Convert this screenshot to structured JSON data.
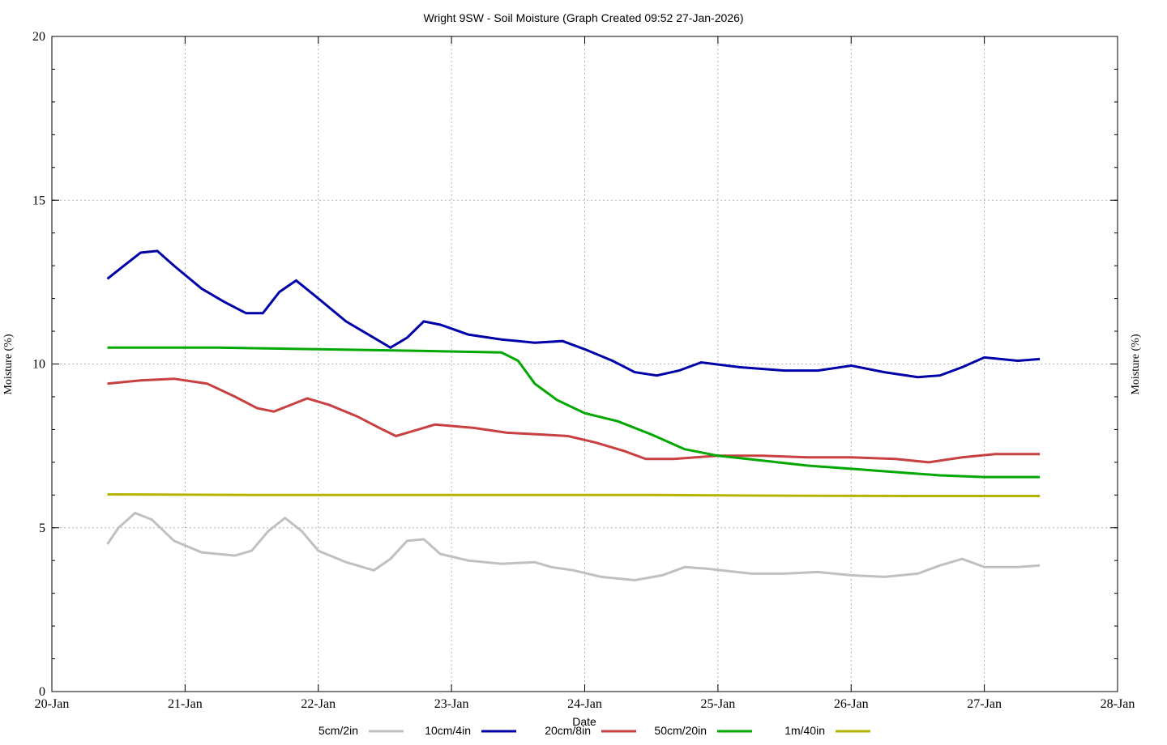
{
  "chart_data": {
    "type": "line",
    "title": "Wright 9SW - Soil Moisture (Graph Created 09:52 27-Jan-2026)",
    "xlabel": "Date",
    "ylabel": "Moisture (%)",
    "ylabel_right": "Moisture (%)",
    "x_ticks": [
      "20-Jan",
      "21-Jan",
      "22-Jan",
      "23-Jan",
      "24-Jan",
      "25-Jan",
      "26-Jan",
      "27-Jan",
      "28-Jan"
    ],
    "y_ticks": [
      "0",
      "5",
      "10",
      "15",
      "20"
    ],
    "xlim": [
      "20-Jan",
      "28-Jan"
    ],
    "ylim": [
      0,
      20
    ],
    "grid": true,
    "legend_position": "bottom",
    "series": [
      {
        "name": "5cm/2in",
        "color": "#c0c0c0",
        "x": [
          "20-Jan 10:00",
          "20-Jan 12:00",
          "20-Jan 15:00",
          "20-Jan 18:00",
          "20-Jan 22:00",
          "21-Jan 03:00",
          "21-Jan 09:00",
          "21-Jan 12:00",
          "21-Jan 15:00",
          "21-Jan 18:00",
          "21-Jan 21:00",
          "22-Jan 00:00",
          "22-Jan 05:00",
          "22-Jan 10:00",
          "22-Jan 13:00",
          "22-Jan 16:00",
          "22-Jan 19:00",
          "22-Jan 22:00",
          "23-Jan 03:00",
          "23-Jan 09:00",
          "23-Jan 15:00",
          "23-Jan 18:00",
          "23-Jan 22:00",
          "24-Jan 03:00",
          "24-Jan 09:00",
          "24-Jan 14:00",
          "24-Jan 18:00",
          "24-Jan 22:00",
          "25-Jan 06:00",
          "25-Jan 12:00",
          "25-Jan 18:00",
          "26-Jan 00:00",
          "26-Jan 06:00",
          "26-Jan 12:00",
          "26-Jan 16:00",
          "26-Jan 20:00",
          "27-Jan 00:00",
          "27-Jan 06:00",
          "27-Jan 10:00"
        ],
        "values": [
          4.5,
          5.0,
          5.45,
          5.25,
          4.6,
          4.25,
          4.15,
          4.3,
          4.9,
          5.3,
          4.9,
          4.3,
          3.95,
          3.7,
          4.05,
          4.6,
          4.65,
          4.2,
          4.0,
          3.9,
          3.95,
          3.8,
          3.7,
          3.5,
          3.4,
          3.55,
          3.8,
          3.75,
          3.6,
          3.6,
          3.65,
          3.55,
          3.5,
          3.6,
          3.85,
          4.05,
          3.8,
          3.8,
          3.85
        ]
      },
      {
        "name": "10cm/4in",
        "color": "#0000a8",
        "x": [
          "20-Jan 10:00",
          "20-Jan 13:00",
          "20-Jan 16:00",
          "20-Jan 19:00",
          "20-Jan 22:00",
          "21-Jan 03:00",
          "21-Jan 07:00",
          "21-Jan 11:00",
          "21-Jan 14:00",
          "21-Jan 17:00",
          "21-Jan 20:00",
          "22-Jan 00:00",
          "22-Jan 05:00",
          "22-Jan 10:00",
          "22-Jan 13:00",
          "22-Jan 16:00",
          "22-Jan 19:00",
          "22-Jan 22:00",
          "23-Jan 03:00",
          "23-Jan 09:00",
          "23-Jan 15:00",
          "23-Jan 20:00",
          "24-Jan 00:00",
          "24-Jan 05:00",
          "24-Jan 09:00",
          "24-Jan 13:00",
          "24-Jan 17:00",
          "24-Jan 21:00",
          "25-Jan 04:00",
          "25-Jan 12:00",
          "25-Jan 18:00",
          "26-Jan 00:00",
          "26-Jan 06:00",
          "26-Jan 12:00",
          "26-Jan 16:00",
          "26-Jan 20:00",
          "27-Jan 00:00",
          "27-Jan 06:00",
          "27-Jan 10:00"
        ],
        "values": [
          12.6,
          13.0,
          13.4,
          13.45,
          13.0,
          12.3,
          11.9,
          11.55,
          11.55,
          12.2,
          12.55,
          12.0,
          11.3,
          10.8,
          10.5,
          10.8,
          11.3,
          11.2,
          10.9,
          10.75,
          10.65,
          10.7,
          10.45,
          10.1,
          9.75,
          9.65,
          9.8,
          10.05,
          9.9,
          9.8,
          9.8,
          9.95,
          9.75,
          9.6,
          9.65,
          9.9,
          10.2,
          10.1,
          10.15
        ]
      },
      {
        "name": "20cm/8in",
        "color": "#c84040",
        "x": [
          "20-Jan 10:00",
          "20-Jan 16:00",
          "20-Jan 22:00",
          "21-Jan 04:00",
          "21-Jan 09:00",
          "21-Jan 13:00",
          "21-Jan 16:00",
          "21-Jan 19:00",
          "21-Jan 22:00",
          "22-Jan 02:00",
          "22-Jan 07:00",
          "22-Jan 11:00",
          "22-Jan 14:00",
          "22-Jan 17:00",
          "22-Jan 21:00",
          "23-Jan 04:00",
          "23-Jan 10:00",
          "23-Jan 16:00",
          "23-Jan 21:00",
          "24-Jan 02:00",
          "24-Jan 07:00",
          "24-Jan 11:00",
          "24-Jan 16:00",
          "25-Jan 00:00",
          "25-Jan 08:00",
          "25-Jan 16:00",
          "26-Jan 00:00",
          "26-Jan 08:00",
          "26-Jan 14:00",
          "26-Jan 20:00",
          "27-Jan 02:00",
          "27-Jan 10:00"
        ],
        "values": [
          9.4,
          9.5,
          9.55,
          9.4,
          9.0,
          8.65,
          8.55,
          8.75,
          8.95,
          8.75,
          8.4,
          8.05,
          7.8,
          7.95,
          8.15,
          8.05,
          7.9,
          7.85,
          7.8,
          7.6,
          7.35,
          7.1,
          7.1,
          7.2,
          7.2,
          7.15,
          7.15,
          7.1,
          7.0,
          7.15,
          7.25,
          7.25
        ]
      },
      {
        "name": "50cm/20in",
        "color": "#00a800",
        "x": [
          "20-Jan 10:00",
          "21-Jan 06:00",
          "22-Jan 00:00",
          "22-Jan 18:00",
          "23-Jan 09:00",
          "23-Jan 12:00",
          "23-Jan 15:00",
          "23-Jan 19:00",
          "24-Jan 00:00",
          "24-Jan 06:00",
          "24-Jan 12:00",
          "24-Jan 18:00",
          "25-Jan 00:00",
          "25-Jan 08:00",
          "25-Jan 16:00",
          "26-Jan 00:00",
          "26-Jan 08:00",
          "26-Jan 16:00",
          "27-Jan 00:00",
          "27-Jan 10:00"
        ],
        "values": [
          10.5,
          10.5,
          10.45,
          10.4,
          10.35,
          10.1,
          9.4,
          8.9,
          8.5,
          8.25,
          7.85,
          7.4,
          7.2,
          7.05,
          6.9,
          6.8,
          6.7,
          6.6,
          6.55,
          6.55
        ]
      },
      {
        "name": "1m/40in",
        "color": "#b4b400",
        "x": [
          "20-Jan 10:00",
          "21-Jan 12:00",
          "22-Jan 12:00",
          "23-Jan 12:00",
          "24-Jan 12:00",
          "25-Jan 12:00",
          "26-Jan 12:00",
          "27-Jan 10:00"
        ],
        "values": [
          6.02,
          6.0,
          6.0,
          6.0,
          6.0,
          5.98,
          5.97,
          5.97
        ]
      }
    ]
  }
}
